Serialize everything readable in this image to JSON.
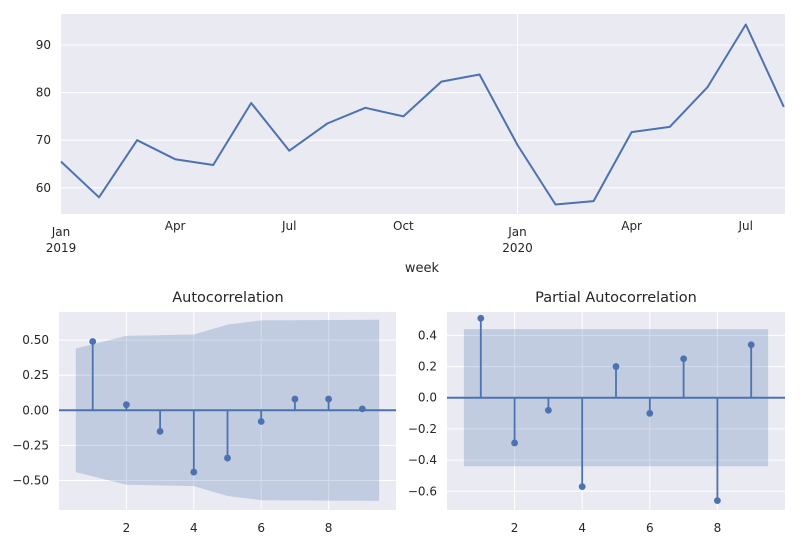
{
  "chart_data": [
    {
      "type": "line",
      "xlabel": "week",
      "x": [
        "2019-01",
        "2019-02",
        "2019-03",
        "2019-04",
        "2019-05",
        "2019-06",
        "2019-07",
        "2019-08",
        "2019-09",
        "2019-10",
        "2019-11",
        "2019-12",
        "2020-01",
        "2020-02",
        "2020-03",
        "2020-04",
        "2020-05",
        "2020-06",
        "2020-07",
        "2020-08"
      ],
      "series": [
        {
          "values": [
            65.5,
            58.0,
            70.0,
            66.0,
            64.8,
            77.8,
            67.8,
            73.5,
            76.8,
            75.0,
            82.3,
            83.8,
            69.0,
            56.5,
            57.2,
            71.7,
            72.8,
            81.2,
            94.3,
            77.0
          ]
        }
      ],
      "yticks": [
        60,
        70,
        80,
        90
      ],
      "ylim": [
        54.5,
        96.5
      ],
      "xtick_labels": [
        {
          "x": "2019-01",
          "line1": "Jan",
          "line2": "2019"
        },
        {
          "x": "2019-04",
          "line1": "Apr",
          "line2": ""
        },
        {
          "x": "2019-07",
          "line1": "Jul",
          "line2": ""
        },
        {
          "x": "2019-10",
          "line1": "Oct",
          "line2": ""
        },
        {
          "x": "2020-01",
          "line1": "Jan",
          "line2": "2020"
        },
        {
          "x": "2020-04",
          "line1": "Apr",
          "line2": ""
        },
        {
          "x": "2020-07",
          "line1": "Jul",
          "line2": ""
        }
      ],
      "grid": true
    },
    {
      "type": "stem",
      "title": "Autocorrelation",
      "lags": [
        1,
        2,
        3,
        4,
        5,
        6,
        7,
        8,
        9
      ],
      "values": [
        0.49,
        0.04,
        -0.15,
        -0.44,
        -0.34,
        -0.08,
        0.08,
        0.08,
        0.01
      ],
      "confidence_band": [
        {
          "lag": 0.5,
          "limit": 0.44
        },
        {
          "lag": 2,
          "limit": 0.53
        },
        {
          "lag": 4,
          "limit": 0.54
        },
        {
          "lag": 5,
          "limit": 0.61
        },
        {
          "lag": 6,
          "limit": 0.64
        },
        {
          "lag": 9.5,
          "limit": 0.645
        }
      ],
      "xticks": [
        2,
        4,
        6,
        8
      ],
      "yticks": [
        -0.5,
        -0.25,
        0.0,
        0.25,
        0.5
      ],
      "ytick_labels": [
        "−0.50",
        "−0.25",
        "0.00",
        "0.25",
        "0.50"
      ],
      "xlim": [
        0,
        10
      ],
      "ylim": [
        -0.71,
        0.7
      ],
      "grid": true
    },
    {
      "type": "stem",
      "title": "Partial Autocorrelation",
      "lags": [
        1,
        2,
        3,
        4,
        5,
        6,
        7,
        8,
        9
      ],
      "values": [
        0.51,
        -0.29,
        -0.08,
        -0.57,
        0.2,
        -0.1,
        0.25,
        -0.66,
        0.34
      ],
      "confidence_band": [
        {
          "lag": 0.5,
          "limit": 0.44
        },
        {
          "lag": 9.5,
          "limit": 0.44
        }
      ],
      "xticks": [
        2,
        4,
        6,
        8
      ],
      "yticks": [
        -0.6,
        -0.4,
        -0.2,
        0.0,
        0.2,
        0.4
      ],
      "ytick_labels": [
        "−0.6",
        "−0.4",
        "−0.2",
        "0.0",
        "0.2",
        "0.4"
      ],
      "xlim": [
        0,
        10
      ],
      "ylim": [
        -0.72,
        0.55
      ],
      "grid": true
    }
  ],
  "colors": {
    "line": "#4c72b0",
    "band": "#4c72b0",
    "axes_bg": "#eaeaf2",
    "grid": "#ffffff"
  }
}
